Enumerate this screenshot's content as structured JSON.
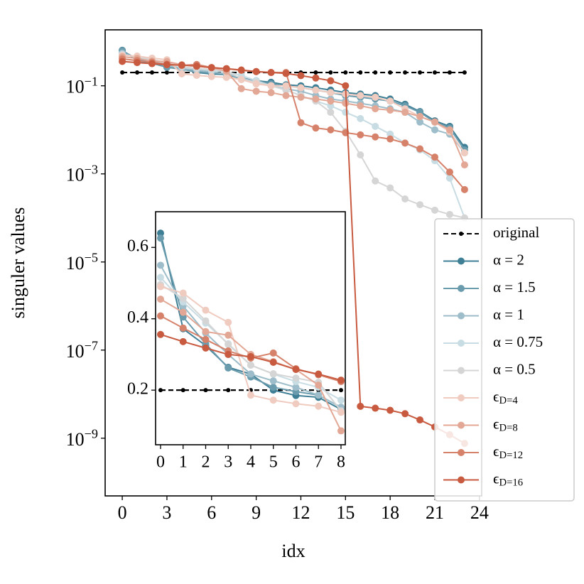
{
  "chart_data": [
    {
      "type": "line",
      "xlabel": "idx",
      "ylabel": "singuler values",
      "log_y": true,
      "legend": "right",
      "xlim": [
        -1.15,
        24.15
      ],
      "xticks": [
        0,
        3,
        6,
        9,
        12,
        15,
        18,
        21,
        24
      ],
      "ylim": [
        1.86,
        4.9e-11
      ],
      "yticks": [
        {
          "value": 0.1,
          "label": "10^{−1}"
        },
        {
          "value": 0.001,
          "label": "10^{−3}"
        },
        {
          "value": 1e-05,
          "label": "10^{−5}"
        },
        {
          "value": 1e-07,
          "label": "10^{−7}"
        },
        {
          "value": 1e-09,
          "label": "10^{−9}"
        }
      ],
      "x": [
        0,
        1,
        2,
        3,
        4,
        5,
        6,
        7,
        8,
        9,
        10,
        11,
        12,
        13,
        14,
        15,
        16,
        17,
        18,
        19,
        20,
        21,
        22,
        23
      ],
      "series": [
        {
          "name": "original",
          "color": "#000000",
          "dashed": true,
          "values": [
            0.2,
            0.2,
            0.2,
            0.2,
            0.2,
            0.2,
            0.2,
            0.2,
            0.2,
            0.2,
            0.2,
            0.2,
            0.2,
            0.2,
            0.2,
            0.2,
            0.2,
            0.2,
            0.2,
            0.2,
            0.2,
            0.2,
            0.2,
            0.2
          ]
        },
        {
          "name": "α = 2",
          "color": "#3f7f95",
          "values": [
            0.64,
            0.372,
            0.325,
            0.264,
            0.245,
            0.2,
            0.185,
            0.18,
            0.146,
            0.13,
            0.12,
            0.105,
            0.1,
            0.09,
            0.08,
            0.07,
            0.065,
            0.06,
            0.05,
            0.038,
            0.026,
            0.016,
            0.012,
            0.004
          ]
        },
        {
          "name": "α = 1.5",
          "color": "#6a9cae",
          "values": [
            0.626,
            0.405,
            0.33,
            0.262,
            0.237,
            0.208,
            0.196,
            0.186,
            0.152,
            0.13,
            0.11,
            0.1,
            0.09,
            0.08,
            0.07,
            0.06,
            0.055,
            0.05,
            0.045,
            0.035,
            0.025,
            0.015,
            0.011,
            0.0035
          ]
        },
        {
          "name": "α = 1",
          "color": "#9dbdca",
          "values": [
            0.55,
            0.436,
            0.36,
            0.3,
            0.245,
            0.226,
            0.208,
            0.186,
            0.152,
            0.12,
            0.1,
            0.085,
            0.075,
            0.06,
            0.05,
            0.045,
            0.04,
            0.035,
            0.03,
            0.025,
            0.015,
            0.01,
            0.008,
            0.003
          ]
        },
        {
          "name": "α = 0.75",
          "color": "#c7dce3",
          "values": [
            0.516,
            0.447,
            0.388,
            0.33,
            0.27,
            0.245,
            0.224,
            0.208,
            0.172,
            0.13,
            0.1,
            0.08,
            0.06,
            0.045,
            0.035,
            0.025,
            0.018,
            0.012,
            0.008,
            0.005,
            0.0035,
            0.002,
            0.0008,
            0.0001
          ]
        },
        {
          "name": "α = 0.5",
          "color": "#d5d5d5",
          "values": [
            0.496,
            0.457,
            0.394,
            0.328,
            0.27,
            0.246,
            0.234,
            0.222,
            0.142,
            0.12,
            0.1,
            0.08,
            0.06,
            0.045,
            0.025,
            0.0093,
            0.0027,
            0.00069,
            0.00048,
            0.00027,
            0.0002,
            0.00015,
            0.00012,
            0.0001
          ]
        },
        {
          "name": "ϵ_{D=4}",
          "color": "#f0cbc0",
          "values": [
            0.49,
            0.472,
            0.424,
            0.39,
            0.186,
            0.172,
            0.162,
            0.155,
            0.138,
            0.11,
            0.1,
            0.1,
            0.09,
            0.08,
            0.07,
            0.065,
            0.06,
            0.055,
            0.045,
            0.03,
            0.02,
            0.015,
            0.009,
            0.003
          ]
        },
        {
          "name": "ϵ_{D=8}",
          "color": "#e3a795",
          "values": [
            0.455,
            0.418,
            0.364,
            0.354,
            0.3,
            0.28,
            0.258,
            0.214,
            0.086,
            0.075,
            0.07,
            0.06,
            0.055,
            0.05,
            0.045,
            0.04,
            0.035,
            0.03,
            0.028,
            0.025,
            0.02,
            0.015,
            0.01,
            0.0016
          ]
        },
        {
          "name": "ϵ_{D=12}",
          "color": "#d6826b",
          "values": [
            0.408,
            0.374,
            0.342,
            0.31,
            0.29,
            0.304,
            0.26,
            0.243,
            0.224,
            0.21,
            0.2,
            0.2,
            0.0145,
            0.011,
            0.01,
            0.0086,
            0.0077,
            0.0069,
            0.0062,
            0.005,
            0.0037,
            0.0024,
            0.0011,
            0.00044
          ]
        },
        {
          "name": "ϵ_{D=16}",
          "color": "#c85a40",
          "values": [
            0.356,
            0.336,
            0.318,
            0.3,
            0.294,
            0.278,
            0.258,
            0.245,
            0.228,
            0.21,
            0.2,
            0.19,
            0.17,
            0.15,
            0.13,
            0.1,
            5.3e-09,
            4.8e-09,
            4.3e-09,
            3.6e-09,
            2.6e-09,
            1.8e-09,
            1.2e-09,
            7.6e-10
          ]
        }
      ]
    },
    {
      "type": "line",
      "log_y": false,
      "xlim": [
        -0.22,
        8.19
      ],
      "xticks": [
        0,
        1,
        2,
        3,
        4,
        5,
        6,
        7,
        8
      ],
      "ylim": [
        0.047,
        0.7
      ],
      "yticks": [
        0.2,
        0.4,
        0.6
      ],
      "x": [
        0,
        1,
        2,
        3,
        4,
        5,
        6,
        7,
        8
      ],
      "series": [
        {
          "color": "#000000",
          "dashed": true,
          "values": [
            0.2,
            0.2,
            0.2,
            0.2,
            0.2,
            0.2,
            0.2,
            0.2,
            0.2
          ]
        },
        {
          "color": "#3f7f95",
          "values": [
            0.64,
            0.372,
            0.325,
            0.264,
            0.245,
            0.2,
            0.185,
            0.18,
            0.146
          ]
        },
        {
          "color": "#6a9cae",
          "values": [
            0.626,
            0.405,
            0.33,
            0.262,
            0.237,
            0.208,
            0.196,
            0.186,
            0.152
          ]
        },
        {
          "color": "#9dbdca",
          "values": [
            0.55,
            0.436,
            0.36,
            0.3,
            0.245,
            0.226,
            0.208,
            0.186,
            0.152
          ]
        },
        {
          "color": "#c7dce3",
          "values": [
            0.516,
            0.447,
            0.388,
            0.33,
            0.27,
            0.245,
            0.224,
            0.208,
            0.172
          ]
        },
        {
          "color": "#d5d5d5",
          "values": [
            0.496,
            0.457,
            0.394,
            0.328,
            0.27,
            0.246,
            0.234,
            0.222,
            0.142
          ]
        },
        {
          "color": "#f0cbc0",
          "values": [
            0.49,
            0.472,
            0.424,
            0.39,
            0.186,
            0.172,
            0.162,
            0.155,
            0.138
          ]
        },
        {
          "color": "#e3a795",
          "values": [
            0.455,
            0.418,
            0.364,
            0.354,
            0.3,
            0.28,
            0.258,
            0.214,
            0.086
          ]
        },
        {
          "color": "#d6826b",
          "values": [
            0.408,
            0.374,
            0.342,
            0.31,
            0.29,
            0.304,
            0.26,
            0.243,
            0.224
          ]
        },
        {
          "color": "#c85a40",
          "values": [
            0.356,
            0.336,
            0.318,
            0.3,
            0.294,
            0.278,
            0.258,
            0.245,
            0.228
          ]
        }
      ]
    }
  ]
}
